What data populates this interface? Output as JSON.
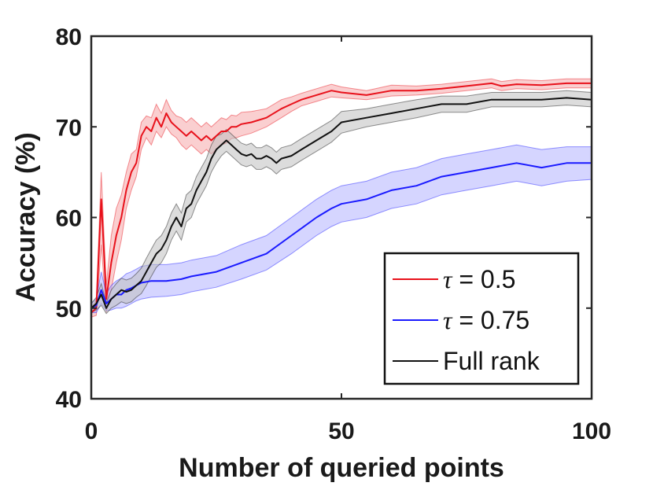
{
  "chart_data": {
    "type": "line",
    "title": "",
    "xlabel": "Number of queried points",
    "ylabel": "Accuracy (%)",
    "xlim": [
      0,
      100
    ],
    "ylim": [
      40,
      80
    ],
    "xticks": [
      0,
      50,
      100
    ],
    "yticks": [
      40,
      50,
      60,
      70,
      80
    ],
    "grid": false,
    "legend_position": "bottom-right",
    "series": [
      {
        "name": "τ = 0.5",
        "legend_symbol": "τ",
        "legend_text": " = 0.5",
        "color": "#e8111b",
        "band_color": "#f5a8aa",
        "x": [
          0,
          1,
          2,
          3,
          4,
          5,
          6,
          7,
          8,
          9,
          10,
          11,
          12,
          13,
          14,
          15,
          16,
          17,
          18,
          19,
          20,
          21,
          22,
          23,
          24,
          25,
          26,
          27,
          28,
          29,
          30,
          32,
          35,
          38,
          40,
          42,
          45,
          48,
          50,
          55,
          60,
          65,
          70,
          75,
          80,
          82,
          85,
          90,
          95,
          100
        ],
        "mean": [
          49.5,
          50,
          62,
          51,
          55,
          58,
          60,
          63,
          65,
          66,
          69,
          70,
          69.5,
          71,
          70,
          71.5,
          70.5,
          70,
          69.5,
          69,
          69.5,
          69,
          68.5,
          69,
          68.5,
          69,
          69.5,
          69.5,
          70,
          70,
          70.3,
          70.5,
          71,
          72,
          72.5,
          73,
          73.5,
          74,
          73.8,
          73.5,
          74,
          74,
          74.2,
          74.5,
          74.8,
          74.5,
          74.7,
          74.6,
          74.8,
          74.8
        ],
        "lower": [
          49,
          49.2,
          57,
          49.5,
          52,
          55,
          57.5,
          61,
          63,
          64.5,
          67.5,
          68.8,
          68,
          69.5,
          68.8,
          70,
          69.2,
          68.8,
          68,
          67.5,
          68,
          67.5,
          67,
          67.5,
          67,
          67.5,
          68,
          68.2,
          68.7,
          68.8,
          69,
          69.3,
          70,
          71,
          71.7,
          72.3,
          72.8,
          73.3,
          73.2,
          73,
          73.4,
          73.5,
          73.7,
          74,
          74.3,
          74,
          74.2,
          74.1,
          74.3,
          74.3
        ],
        "upper": [
          50,
          51,
          65,
          52.5,
          58,
          61,
          62.5,
          65,
          67,
          67.5,
          70.5,
          71.2,
          71,
          72.5,
          71.5,
          73,
          71.8,
          71.2,
          71,
          70.5,
          71,
          70.5,
          70,
          70.5,
          70,
          70.5,
          71,
          70.8,
          71.3,
          71.2,
          71.6,
          71.7,
          72,
          73,
          73.3,
          73.7,
          74.2,
          74.7,
          74.4,
          74,
          74.6,
          74.5,
          74.7,
          75,
          75.3,
          75,
          75.2,
          75.1,
          75.3,
          75.3
        ]
      },
      {
        "name": "τ = 0.75",
        "legend_symbol": "τ",
        "legend_text": " = 0.75",
        "color": "#1a1aff",
        "band_color": "#b3b3ff",
        "x": [
          0,
          1,
          2,
          3,
          4,
          5,
          6,
          7,
          8,
          9,
          10,
          12,
          15,
          18,
          20,
          25,
          30,
          35,
          40,
          45,
          48,
          50,
          55,
          60,
          65,
          70,
          75,
          80,
          85,
          90,
          95,
          100
        ],
        "mean": [
          50,
          50.3,
          52,
          50.5,
          51,
          51.5,
          51.5,
          52,
          52.2,
          52.5,
          52.8,
          53,
          53,
          53.2,
          53.5,
          54,
          55,
          56,
          58,
          60,
          61,
          61.5,
          62,
          63,
          63.5,
          64.5,
          65,
          65.5,
          66,
          65.5,
          66,
          66
        ],
        "lower": [
          49.5,
          49.5,
          50.5,
          49.7,
          49.8,
          50,
          50,
          50.2,
          50.5,
          50.8,
          51,
          51.2,
          51.3,
          51.5,
          51.8,
          52.3,
          53.2,
          54.2,
          56,
          58,
          59,
          59.5,
          60,
          61,
          61.5,
          62.5,
          63,
          63.5,
          64,
          63.5,
          64,
          64.2
        ],
        "upper": [
          50.5,
          51.1,
          54,
          51.6,
          52.5,
          53,
          53.3,
          53.8,
          54,
          54.3,
          54.6,
          54.8,
          54.8,
          55,
          55.3,
          55.8,
          57,
          58,
          60,
          62,
          63,
          63.5,
          64,
          65,
          65.5,
          66.5,
          67,
          67.5,
          68,
          67.5,
          67.8,
          67.8
        ]
      },
      {
        "name": "Full rank",
        "legend_symbol": "",
        "legend_text": "Full rank",
        "color": "#111111",
        "band_color": "#c0c0c0",
        "x": [
          0,
          1,
          2,
          3,
          4,
          5,
          6,
          7,
          8,
          9,
          10,
          11,
          12,
          13,
          14,
          15,
          16,
          17,
          18,
          19,
          20,
          21,
          22,
          23,
          24,
          25,
          26,
          27,
          28,
          29,
          30,
          31,
          32,
          33,
          34,
          35,
          36,
          37,
          38,
          40,
          42,
          45,
          48,
          50,
          55,
          60,
          65,
          70,
          75,
          80,
          85,
          90,
          95,
          100
        ],
        "mean": [
          50,
          50.5,
          51.5,
          50,
          51,
          51.5,
          52,
          51.8,
          52,
          52.5,
          53,
          54,
          55,
          56,
          56.5,
          57.5,
          59,
          60,
          59,
          61,
          61.5,
          63,
          64,
          65,
          66.5,
          67.5,
          68,
          68.5,
          68,
          67.5,
          67,
          66.8,
          67,
          66.5,
          66.5,
          66.8,
          66.5,
          66,
          66.5,
          66.8,
          67.5,
          68.5,
          69.5,
          70.5,
          71,
          71.5,
          72,
          72.5,
          72.5,
          73,
          73,
          73,
          73.2,
          73
        ],
        "lower": [
          49.5,
          49.8,
          50.3,
          49.4,
          50,
          50.3,
          50.7,
          50.5,
          50.7,
          51.2,
          51.6,
          52.5,
          53.5,
          54.5,
          55,
          56,
          57.5,
          58.5,
          57.5,
          59.5,
          60,
          61.5,
          62.5,
          63.5,
          65,
          66,
          66.8,
          67.3,
          66.8,
          66.3,
          65.8,
          65.6,
          65.8,
          65.3,
          65.3,
          65.6,
          65.3,
          64.8,
          65.3,
          65.6,
          66.3,
          67.3,
          68.3,
          69.3,
          70,
          70.5,
          71,
          71.6,
          71.6,
          72.2,
          72.2,
          72.2,
          72.4,
          72.2
        ],
        "upper": [
          50.5,
          51.2,
          52.7,
          50.6,
          52,
          52.7,
          53.3,
          53.1,
          53.3,
          53.8,
          54.4,
          55.5,
          56.5,
          57.5,
          58,
          59,
          60.5,
          61.5,
          60.5,
          62.5,
          63,
          64.5,
          65.5,
          66.5,
          68,
          69,
          69.2,
          69.7,
          69.2,
          68.7,
          68.2,
          68,
          68.2,
          67.7,
          67.7,
          68,
          67.7,
          67.2,
          67.7,
          68,
          68.7,
          69.7,
          70.7,
          71.7,
          72,
          72.5,
          73,
          73.4,
          73.4,
          73.8,
          73.8,
          73.8,
          74,
          73.8
        ]
      }
    ]
  }
}
